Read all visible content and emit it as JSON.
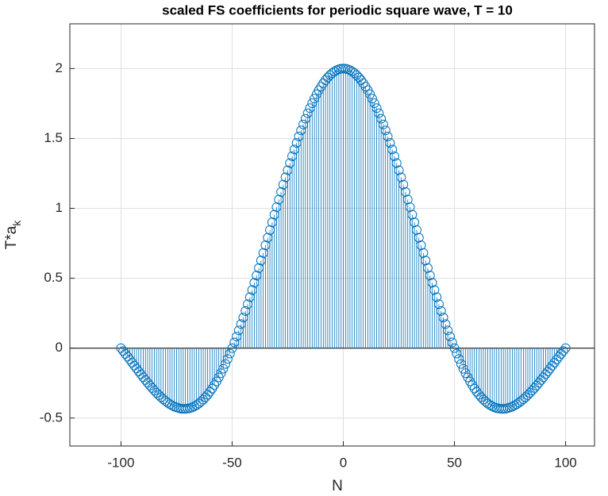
{
  "chart_data": {
    "type": "stem",
    "title": "scaled FS coefficients for periodic square wave, T = 10",
    "xlabel": "N",
    "ylabel": {
      "text": "T*a",
      "subscript": "k"
    },
    "color": "#0072bd",
    "baseline_color": "#000000",
    "grid": true,
    "xlim": [
      -123,
      113
    ],
    "ylim": [
      -0.7,
      2.32
    ],
    "xticks": [
      -100,
      -50,
      0,
      50,
      100
    ],
    "yticks": [
      -0.5,
      0,
      0.5,
      1,
      1.5,
      2
    ],
    "x": [
      -100,
      -99,
      -98,
      -97,
      -96,
      -95,
      -94,
      -93,
      -92,
      -91,
      -90,
      -89,
      -88,
      -87,
      -86,
      -85,
      -84,
      -83,
      -82,
      -81,
      -80,
      -79,
      -78,
      -77,
      -76,
      -75,
      -74,
      -73,
      -72,
      -71,
      -70,
      -69,
      -68,
      -67,
      -66,
      -65,
      -64,
      -63,
      -62,
      -61,
      -60,
      -59,
      -58,
      -57,
      -56,
      -55,
      -54,
      -53,
      -52,
      -51,
      -50,
      -49,
      -48,
      -47,
      -46,
      -45,
      -44,
      -43,
      -42,
      -41,
      -40,
      -39,
      -38,
      -37,
      -36,
      -35,
      -34,
      -33,
      -32,
      -31,
      -30,
      -29,
      -28,
      -27,
      -26,
      -25,
      -24,
      -23,
      -22,
      -21,
      -20,
      -19,
      -18,
      -17,
      -16,
      -15,
      -14,
      -13,
      -12,
      -11,
      -10,
      -9,
      -8,
      -7,
      -6,
      -5,
      -4,
      -3,
      -2,
      -1,
      0,
      1,
      2,
      3,
      4,
      5,
      6,
      7,
      8,
      9,
      10,
      11,
      12,
      13,
      14,
      15,
      16,
      17,
      18,
      19,
      20,
      21,
      22,
      23,
      24,
      25,
      26,
      27,
      28,
      29,
      30,
      31,
      32,
      33,
      34,
      35,
      36,
      37,
      38,
      39,
      40,
      41,
      42,
      43,
      44,
      45,
      46,
      47,
      48,
      49,
      50,
      51,
      52,
      53,
      54,
      55,
      56,
      57,
      58,
      59,
      60,
      61,
      62,
      63,
      64,
      65,
      66,
      67,
      68,
      69,
      70,
      71,
      72,
      73,
      74,
      75,
      76,
      77,
      78,
      79,
      80,
      81,
      82,
      83,
      84,
      85,
      86,
      87,
      88,
      89,
      90,
      91,
      92,
      93,
      94,
      95,
      96,
      97,
      98,
      99,
      100
    ],
    "values": [
      0,
      -0.02,
      -0.041,
      -0.061,
      -0.082,
      -0.104,
      -0.125,
      -0.146,
      -0.167,
      -0.187,
      -0.208,
      -0.228,
      -0.248,
      -0.267,
      -0.285,
      -0.303,
      -0.32,
      -0.336,
      -0.351,
      -0.365,
      -0.378,
      -0.39,
      -0.401,
      -0.41,
      -0.418,
      -0.424,
      -0.429,
      -0.433,
      -0.434,
      -0.434,
      -0.432,
      -0.429,
      -0.424,
      -0.416,
      -0.407,
      -0.396,
      -0.383,
      -0.368,
      -0.351,
      -0.333,
      -0.312,
      -0.289,
      -0.264,
      -0.238,
      -0.209,
      -0.179,
      -0.147,
      -0.113,
      -0.077,
      -0.039,
      0,
      0.041,
      0.083,
      0.127,
      0.172,
      0.219,
      0.266,
      0.315,
      0.365,
      0.416,
      0.468,
      0.52,
      0.573,
      0.627,
      0.681,
      0.736,
      0.79,
      0.845,
      0.9,
      0.955,
      1.009,
      1.063,
      1.117,
      1.17,
      1.222,
      1.273,
      1.324,
      1.373,
      1.421,
      1.468,
      1.514,
      1.558,
      1.6,
      1.641,
      1.68,
      1.717,
      1.752,
      1.785,
      1.816,
      1.845,
      1.871,
      1.895,
      1.917,
      1.936,
      1.953,
      1.967,
      1.979,
      1.988,
      1.995,
      1.999,
      2,
      1.999,
      1.995,
      1.988,
      1.979,
      1.967,
      1.953,
      1.936,
      1.917,
      1.895,
      1.871,
      1.845,
      1.816,
      1.785,
      1.752,
      1.717,
      1.68,
      1.641,
      1.6,
      1.558,
      1.514,
      1.468,
      1.421,
      1.373,
      1.324,
      1.273,
      1.222,
      1.17,
      1.117,
      1.063,
      1.009,
      0.955,
      0.9,
      0.845,
      0.79,
      0.736,
      0.681,
      0.627,
      0.573,
      0.52,
      0.468,
      0.416,
      0.365,
      0.315,
      0.266,
      0.219,
      0.172,
      0.127,
      0.083,
      0.041,
      0,
      -0.039,
      -0.077,
      -0.113,
      -0.147,
      -0.179,
      -0.209,
      -0.238,
      -0.264,
      -0.289,
      -0.312,
      -0.333,
      -0.351,
      -0.368,
      -0.383,
      -0.396,
      -0.407,
      -0.416,
      -0.424,
      -0.429,
      -0.432,
      -0.434,
      -0.434,
      -0.433,
      -0.429,
      -0.424,
      -0.418,
      -0.41,
      -0.401,
      -0.39,
      -0.378,
      -0.365,
      -0.351,
      -0.336,
      -0.32,
      -0.303,
      -0.285,
      -0.267,
      -0.248,
      -0.228,
      -0.208,
      -0.187,
      -0.167,
      -0.146,
      -0.125,
      -0.104,
      -0.082,
      -0.061,
      -0.041,
      -0.02,
      0
    ]
  }
}
